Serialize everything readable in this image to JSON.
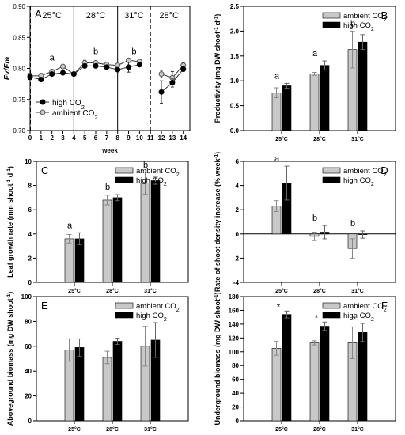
{
  "colors": {
    "ambient": "#c8c8c8",
    "high": "#000000",
    "axis": "#000000",
    "line": "#333333",
    "background": "#ffffff"
  },
  "chart_data": [
    {
      "panel": "A",
      "type": "line",
      "ylabel": "Fv/Fm",
      "xlabel": "week",
      "x_ticks": [
        "0",
        "1",
        "2",
        "3",
        "4",
        "5",
        "6",
        "7",
        "8",
        "9",
        "10",
        "11",
        "12",
        "13",
        "14"
      ],
      "y_ticks": [
        "0.70",
        "0.75",
        "0.80",
        "0.85",
        "0.90"
      ],
      "xlim": [
        0,
        14.6
      ],
      "ylim": [
        0.7,
        0.9
      ],
      "phases": [
        {
          "label": "25°C",
          "x_center": 2,
          "divider_x": null,
          "divider_style": "dashed"
        },
        {
          "label": "28°C",
          "x_center": 6,
          "divider_x": 4,
          "divider_style": "solid"
        },
        {
          "label": "31°C",
          "x_center": 9.5,
          "divider_x": 8,
          "divider_style": "solid"
        },
        {
          "label": "28°C",
          "x_center": 12.7,
          "divider_x": 11,
          "divider_style": "dashed"
        }
      ],
      "annotations": [
        {
          "text": "a",
          "x": 2,
          "y": 0.813
        },
        {
          "text": "b",
          "x": 6,
          "y": 0.823
        },
        {
          "text": "b",
          "x": 9.5,
          "y": 0.823
        }
      ],
      "legend": [
        "high CO2",
        "ambient CO2"
      ],
      "series": [
        {
          "name": "high CO2",
          "marker": "filled",
          "segments": [
            {
              "x": [
                0,
                1,
                2,
                3,
                4,
                5,
                6,
                7,
                8,
                9,
                10
              ],
              "y": [
                0.786,
                0.782,
                0.791,
                0.793,
                0.791,
                0.804,
                0.804,
                0.802,
                0.798,
                0.802,
                0.806
              ],
              "err": [
                0.004,
                0.003,
                0.003,
                0.003,
                0.002,
                0.003,
                0.003,
                0.003,
                0.003,
                0.008,
                0.003
              ]
            },
            {
              "x": [
                12,
                13,
                14
              ],
              "y": [
                0.762,
                0.777,
                0.799
              ],
              "err": [
                0.018,
                0.007,
                0.004
              ]
            }
          ]
        },
        {
          "name": "ambient CO2",
          "marker": "open",
          "segments": [
            {
              "x": [
                0,
                1,
                2,
                3,
                4,
                5,
                6,
                7,
                8,
                9,
                10
              ],
              "y": [
                0.788,
                0.788,
                0.795,
                0.803,
                0.791,
                0.809,
                0.809,
                0.806,
                0.805,
                0.813,
                0.811
              ],
              "err": [
                0.004,
                0.004,
                0.003,
                0.003,
                0.003,
                0.004,
                0.003,
                0.003,
                0.003,
                0.003,
                0.003
              ]
            },
            {
              "x": [
                12,
                13,
                14
              ],
              "y": [
                0.791,
                0.785,
                0.805
              ],
              "err": [
                0.006,
                0.01,
                0.004
              ]
            }
          ]
        }
      ]
    },
    {
      "panel": "B",
      "type": "bar",
      "categories": [
        "25°C",
        "28°C",
        "31°C"
      ],
      "ylabel": "Productivity (mg DW shoot-1 d-1)",
      "y_ticks": [
        "0.0",
        "0.5",
        "1.0",
        "1.5",
        "2.0",
        "2.5"
      ],
      "ylim": [
        0,
        2.5
      ],
      "legend": [
        "ambient CO2",
        "high CO2"
      ],
      "group_letters": [
        "a",
        "a",
        "b"
      ],
      "series": [
        {
          "name": "ambient CO2",
          "values": [
            0.76,
            1.14,
            1.63
          ],
          "err": [
            0.1,
            0.03,
            0.37
          ]
        },
        {
          "name": "high CO2",
          "values": [
            0.9,
            1.31,
            1.78
          ],
          "err": [
            0.05,
            0.09,
            0.15
          ]
        }
      ]
    },
    {
      "panel": "C",
      "type": "bar",
      "categories": [
        "25°C",
        "28°C",
        "31°C"
      ],
      "ylabel": "Leaf growth rate (mm shoot-1 d-1)",
      "y_ticks": [
        "0",
        "2",
        "4",
        "6",
        "8",
        "10"
      ],
      "ylim": [
        0,
        10
      ],
      "legend": [
        "ambient CO2",
        "high CO2"
      ],
      "group_letters": [
        "a",
        "b",
        "b"
      ],
      "series": [
        {
          "name": "ambient CO2",
          "values": [
            3.6,
            6.8,
            8.2
          ],
          "err": [
            0.35,
            0.4,
            0.9
          ]
        },
        {
          "name": "high CO2",
          "values": [
            3.6,
            7.0,
            8.4
          ],
          "err": [
            0.5,
            0.25,
            0.3
          ]
        }
      ]
    },
    {
      "panel": "D",
      "type": "bar",
      "categories": [
        "25°C",
        "28°C",
        "31°C"
      ],
      "ylabel": "Rate of shoot density increase (% week-1)",
      "y_ticks": [
        "-4",
        "-2",
        "0",
        "2",
        "4",
        "6"
      ],
      "ylim": [
        -4,
        6
      ],
      "legend": [
        "ambient CO2",
        "high CO2"
      ],
      "group_letters": [
        "a",
        "b",
        "b"
      ],
      "series": [
        {
          "name": "ambient CO2",
          "values": [
            2.3,
            -0.2,
            -1.2
          ],
          "err": [
            0.45,
            0.35,
            0.8
          ]
        },
        {
          "name": "high CO2",
          "values": [
            4.2,
            0.15,
            -0.05
          ],
          "err": [
            1.4,
            0.55,
            0.3
          ]
        }
      ]
    },
    {
      "panel": "E",
      "type": "bar",
      "categories": [
        "25°C",
        "28°C",
        "31°C"
      ],
      "ylabel": "Aboveground biomass (mg DW shoot-1)",
      "y_ticks": [
        "0",
        "20",
        "40",
        "60",
        "80",
        "100"
      ],
      "ylim": [
        0,
        100
      ],
      "legend": [
        "ambient CO2",
        "high CO2"
      ],
      "group_letters": [
        "",
        "",
        ""
      ],
      "series": [
        {
          "name": "ambient CO2",
          "values": [
            57,
            51,
            60
          ],
          "err": [
            9,
            5,
            16
          ]
        },
        {
          "name": "high CO2",
          "values": [
            59,
            64,
            65
          ],
          "err": [
            7,
            2.5,
            14
          ]
        }
      ]
    },
    {
      "panel": "F",
      "type": "bar",
      "categories": [
        "25°C",
        "28°C",
        "31°C"
      ],
      "ylabel": "Underground biomass (mg DW shoot-1)",
      "y_ticks": [
        "0",
        "20",
        "40",
        "60",
        "80",
        "100",
        "120",
        "140",
        "160",
        "180"
      ],
      "ylim": [
        0,
        180
      ],
      "legend": [
        "ambient CO2",
        "high CO2"
      ],
      "group_letters": [
        "*",
        "*",
        "*"
      ],
      "series": [
        {
          "name": "ambient CO2",
          "values": [
            105,
            113,
            113
          ],
          "err": [
            10,
            3,
            23
          ]
        },
        {
          "name": "high CO2",
          "values": [
            154,
            137,
            128
          ],
          "err": [
            5,
            6,
            13
          ]
        }
      ]
    }
  ]
}
